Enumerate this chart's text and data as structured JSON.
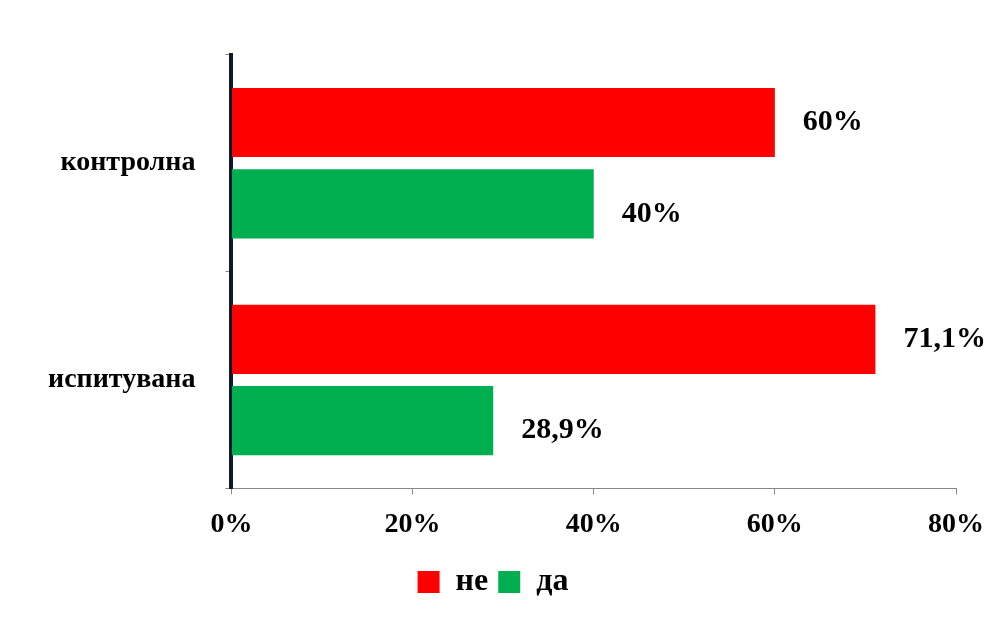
{
  "chart_data": {
    "type": "bar",
    "orientation": "horizontal",
    "categories": [
      "контролна",
      "испитувана"
    ],
    "series": [
      {
        "name": "не",
        "color": "#ff0000",
        "values": [
          60,
          71.1
        ],
        "value_labels": [
          "60%",
          "71,1%"
        ]
      },
      {
        "name": "да",
        "color": "#00b050",
        "values": [
          40,
          28.9
        ],
        "value_labels": [
          "40%",
          "28,9%"
        ]
      }
    ],
    "xlim": [
      0,
      80
    ],
    "xticks": [
      {
        "value": 0,
        "label": "0%"
      },
      {
        "value": 20,
        "label": "20%"
      },
      {
        "value": 40,
        "label": "40%"
      },
      {
        "value": 60,
        "label": "60%"
      },
      {
        "value": 80,
        "label": "80%"
      }
    ],
    "grid": false,
    "legend": "bottom"
  }
}
